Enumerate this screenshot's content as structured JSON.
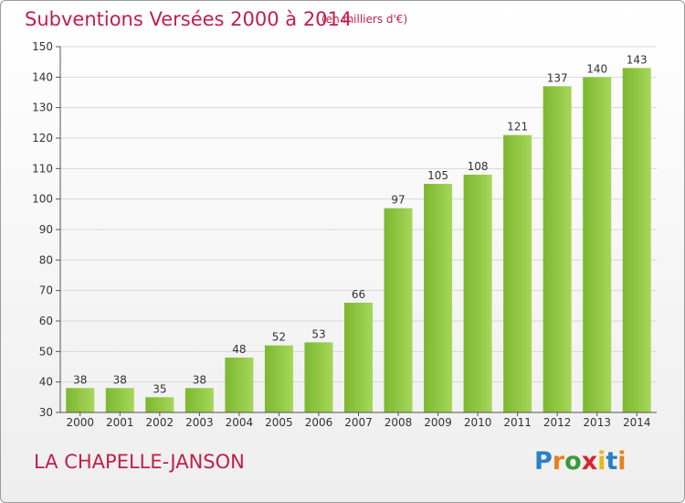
{
  "chart_data": {
    "type": "bar",
    "title": "Subventions Versées 2000 à 2014",
    "subtitle": "(en milliers d'€)",
    "categories": [
      "2000",
      "2001",
      "2002",
      "2003",
      "2004",
      "2005",
      "2006",
      "2007",
      "2008",
      "2009",
      "2010",
      "2011",
      "2012",
      "2013",
      "2014"
    ],
    "values": [
      38,
      38,
      35,
      38,
      48,
      52,
      53,
      66,
      97,
      105,
      108,
      121,
      137,
      140,
      143
    ],
    "ylim": [
      30,
      150
    ],
    "yticks": [
      30,
      40,
      50,
      60,
      70,
      80,
      90,
      100,
      110,
      120,
      130,
      140,
      150
    ],
    "grid": true,
    "bar_color": "#7cb82f",
    "bar_color_light": "#a6d65a"
  },
  "commune": "LA CHAPELLE-JANSON",
  "logo": {
    "text": "Proxiti",
    "letter_colors": [
      "#2b7fc4",
      "#e8801a",
      "#3a9a3a",
      "#d8262b",
      "#e8b81a",
      "#2b7fc4",
      "#e8801a"
    ]
  },
  "colors": {
    "title": "#c0204a",
    "grid": "#d8d8d8",
    "axis": "#555555"
  }
}
